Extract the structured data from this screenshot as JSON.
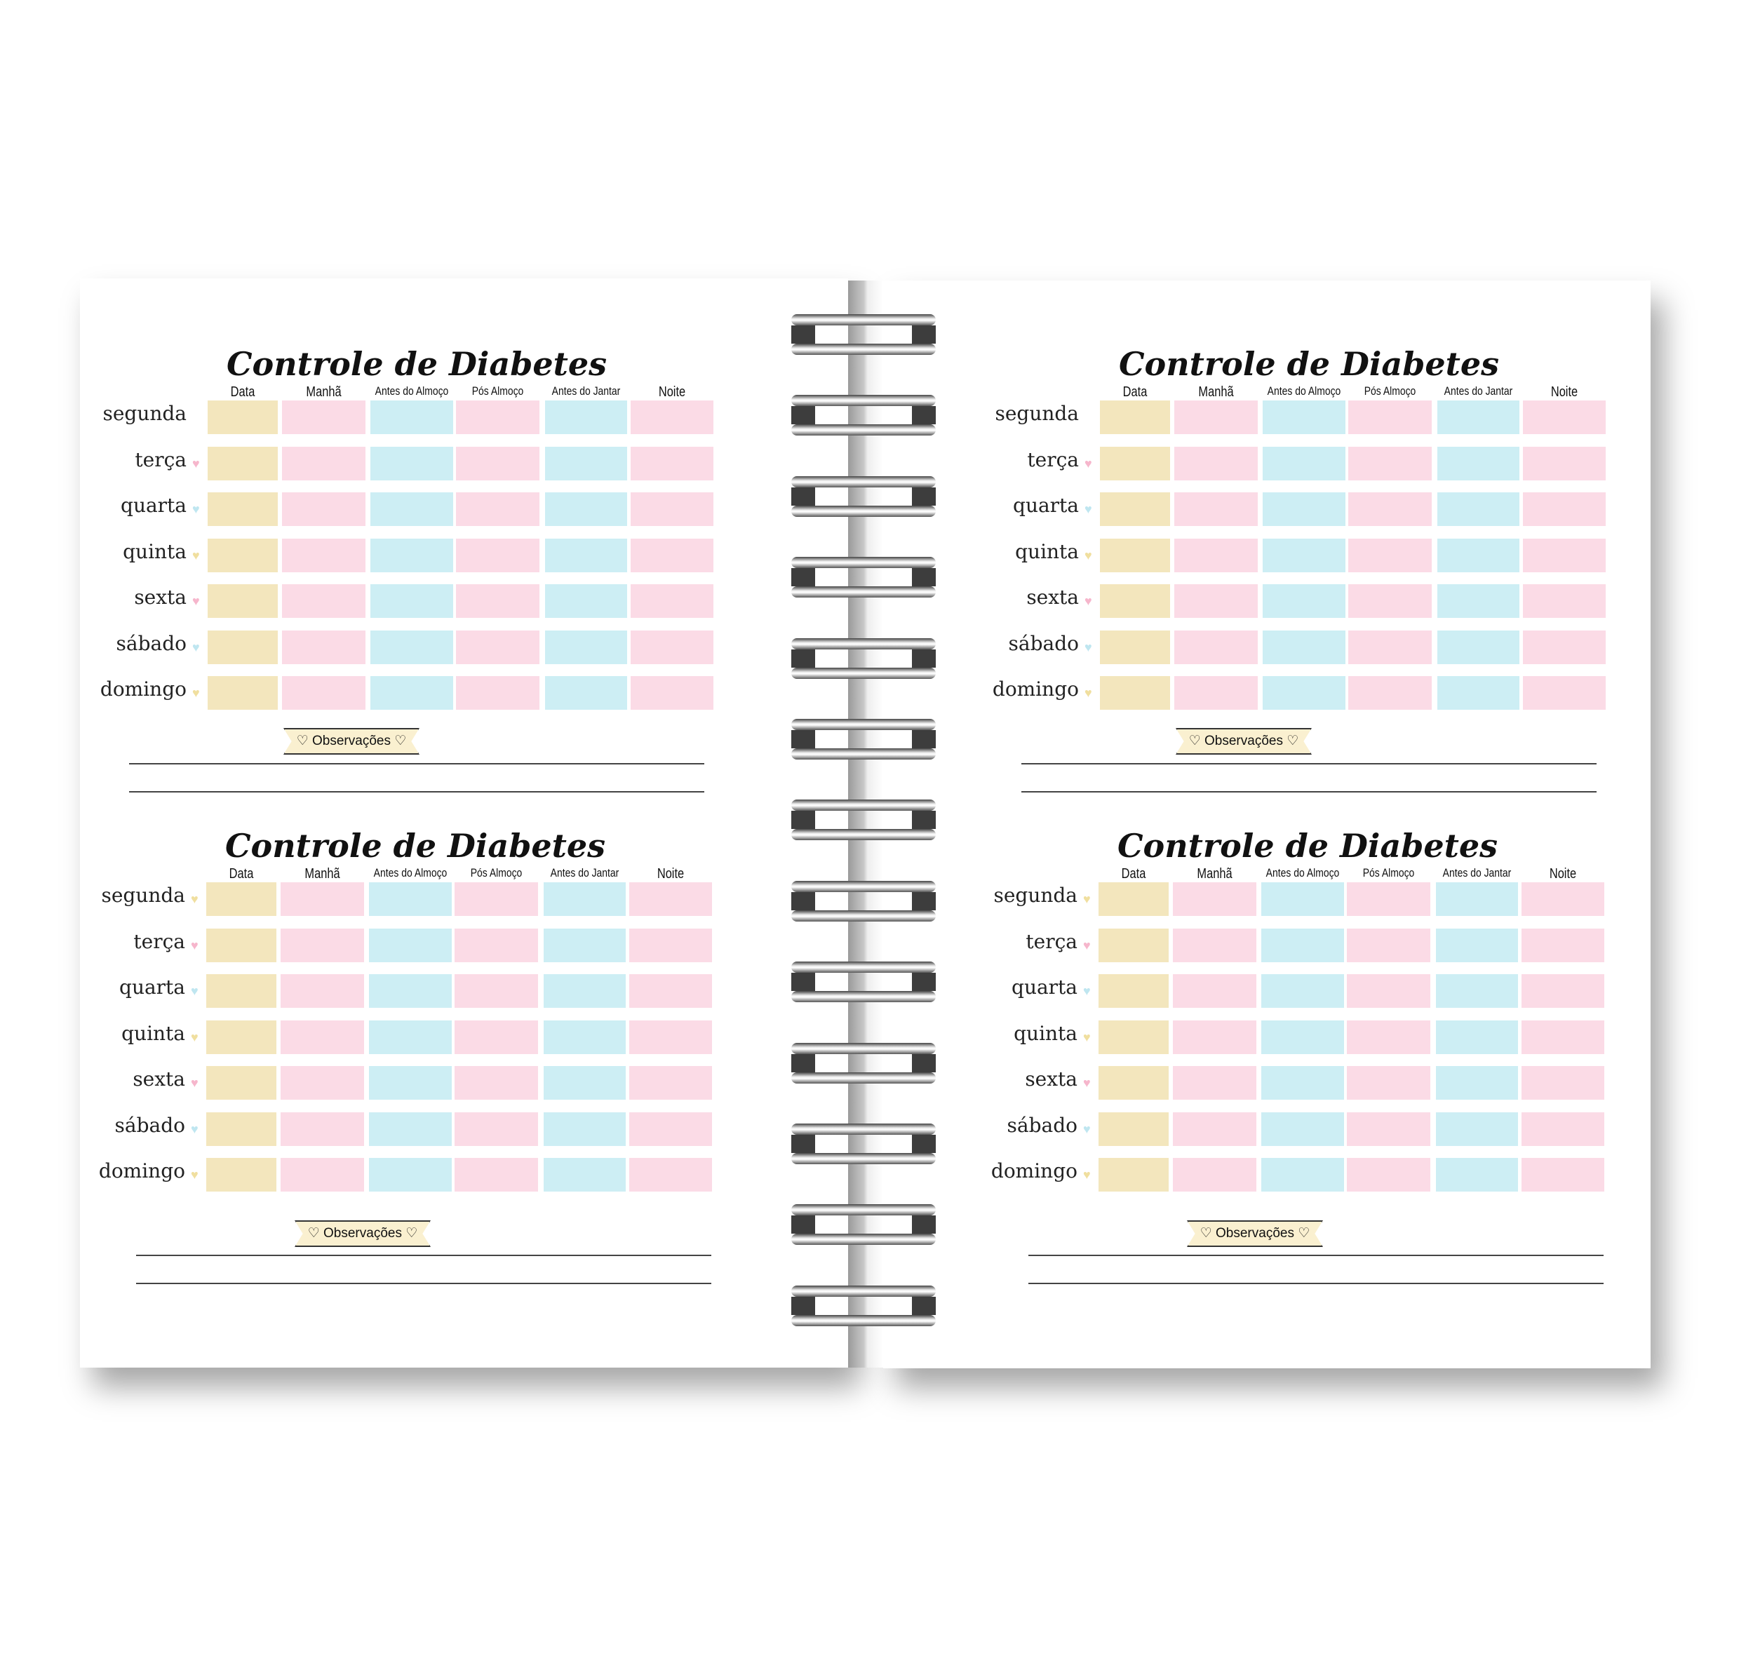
{
  "colors": {
    "yellow": "#f3e6bd",
    "pink": "#fbdbe6",
    "blue": "#cdeef4",
    "heart_pink": "#f6b6cc",
    "heart_blue": "#bfe6f0",
    "heart_yellow": "#f0df9f"
  },
  "columns": [
    "Data",
    "Manhã",
    "Antes do Almoço",
    "Pós Almoço",
    "Antes do Jantar",
    "Noite"
  ],
  "column_colors": [
    "yellow",
    "pink",
    "blue",
    "pink",
    "blue",
    "pink"
  ],
  "blocks": [
    {
      "title": "Controle de Diabetes",
      "observations_label": "♡ Observações ♡",
      "days": [
        {
          "label": "segunda",
          "heart": null
        },
        {
          "label": "terça",
          "heart": "pink"
        },
        {
          "label": "quarta",
          "heart": "blue"
        },
        {
          "label": "quinta",
          "heart": "yellow"
        },
        {
          "label": "sexta",
          "heart": "pink"
        },
        {
          "label": "sábado",
          "heart": "blue"
        },
        {
          "label": "domingo",
          "heart": "yellow"
        }
      ]
    },
    {
      "title": "Controle de Diabetes",
      "observations_label": "♡ Observações ♡",
      "days": [
        {
          "label": "segunda",
          "heart": "yellow"
        },
        {
          "label": "terça",
          "heart": "pink"
        },
        {
          "label": "quarta",
          "heart": "blue"
        },
        {
          "label": "quinta",
          "heart": "yellow"
        },
        {
          "label": "sexta",
          "heart": "pink"
        },
        {
          "label": "sábado",
          "heart": "blue"
        },
        {
          "label": "domingo",
          "heart": "yellow"
        }
      ]
    },
    {
      "title": "Controle de Diabetes",
      "observations_label": "♡ Observações ♡",
      "days": [
        {
          "label": "segunda",
          "heart": null
        },
        {
          "label": "terça",
          "heart": "pink"
        },
        {
          "label": "quarta",
          "heart": "blue"
        },
        {
          "label": "quinta",
          "heart": "yellow"
        },
        {
          "label": "sexta",
          "heart": "pink"
        },
        {
          "label": "sábado",
          "heart": "blue"
        },
        {
          "label": "domingo",
          "heart": "yellow"
        }
      ]
    },
    {
      "title": "Controle de Diabetes",
      "observations_label": "♡ Observações ♡",
      "days": [
        {
          "label": "segunda",
          "heart": "yellow"
        },
        {
          "label": "terça",
          "heart": "pink"
        },
        {
          "label": "quarta",
          "heart": "blue"
        },
        {
          "label": "quinta",
          "heart": "yellow"
        },
        {
          "label": "sexta",
          "heart": "pink"
        },
        {
          "label": "sábado",
          "heart": "blue"
        },
        {
          "label": "domingo",
          "heart": "yellow"
        }
      ]
    }
  ]
}
